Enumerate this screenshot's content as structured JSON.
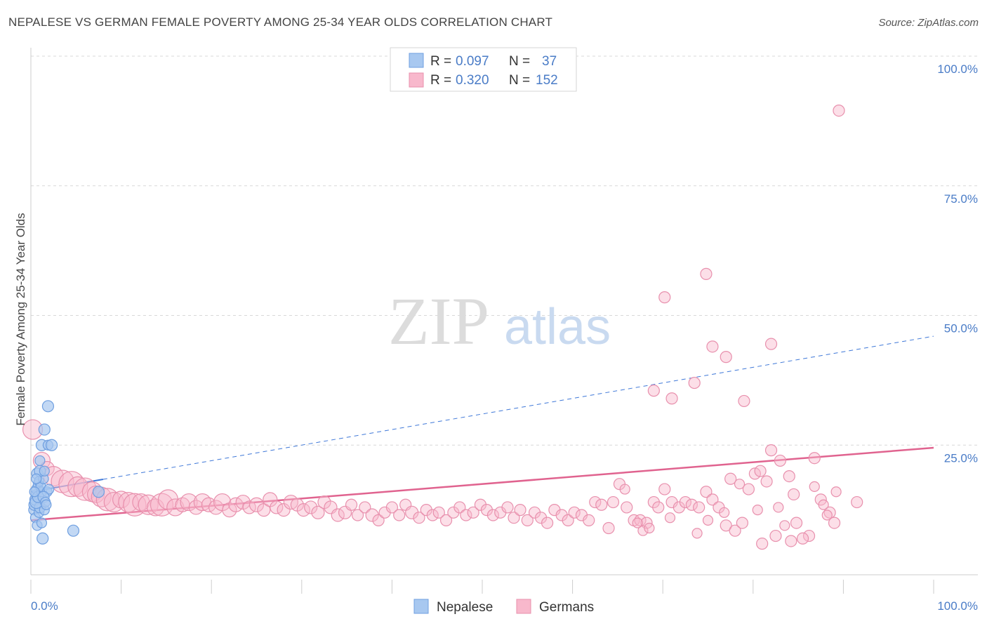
{
  "title": "NEPALESE VS GERMAN FEMALE POVERTY AMONG 25-34 YEAR OLDS CORRELATION CHART",
  "source": "Source: ZipAtlas.com",
  "watermark": {
    "zip": "ZIP",
    "atlas": "atlas"
  },
  "colors": {
    "nepalese_fill": "#a8c8f0",
    "nepalese_stroke": "#6f9fe0",
    "nepalese_line": "#3f78d8",
    "germans_fill": "#f8b8cc",
    "germans_stroke": "#e890ad",
    "germans_line": "#e0638f",
    "label_blue": "#4a7cc7",
    "grid": "#d8d8d8"
  },
  "legend": {
    "r_label": "R =",
    "n_label": "N =",
    "nepalese": {
      "r": "0.097",
      "n": "37"
    },
    "germans": {
      "r": "0.320",
      "n": "152"
    }
  },
  "chart_data": {
    "type": "scatter",
    "xlabel": "",
    "ylabel": "Female Poverty Among 25-34 Year Olds",
    "xlim": [
      0,
      100
    ],
    "ylim": [
      0,
      100
    ],
    "x_tick_labels": {
      "min": "0.0%",
      "max": "100.0%"
    },
    "y_tick_labels": [
      {
        "value": 25,
        "label": "25.0%"
      },
      {
        "value": 50,
        "label": "50.0%"
      },
      {
        "value": 75,
        "label": "75.0%"
      },
      {
        "value": 100,
        "label": "100.0%"
      }
    ],
    "grid": true,
    "legend_placement": "top-center",
    "bottom_legend": [
      "Nepalese",
      "Germans"
    ],
    "series": [
      {
        "name": "Nepalese",
        "trend": {
          "x0": 0,
          "y0": 16.0,
          "x1": 100,
          "y1": 46.0,
          "solid_until": 8
        },
        "points": [
          [
            0.3,
            12.5,
            7
          ],
          [
            0.4,
            13.5,
            8
          ],
          [
            0.5,
            14.5,
            8
          ],
          [
            0.6,
            15.5,
            7
          ],
          [
            0.7,
            16.5,
            8
          ],
          [
            0.8,
            17.5,
            7
          ],
          [
            0.5,
            11.0,
            7
          ],
          [
            0.9,
            12.0,
            7
          ],
          [
            1.0,
            13.0,
            8
          ],
          [
            0.6,
            14.0,
            9
          ],
          [
            0.8,
            15.0,
            8
          ],
          [
            1.2,
            16.0,
            7
          ],
          [
            0.7,
            19.5,
            8
          ],
          [
            0.9,
            18.0,
            7
          ],
          [
            1.1,
            17.0,
            7
          ],
          [
            1.4,
            18.5,
            7
          ],
          [
            0.7,
            9.5,
            7
          ],
          [
            1.2,
            10.0,
            7
          ],
          [
            1.3,
            7.0,
            8
          ],
          [
            1.5,
            12.5,
            7
          ],
          [
            1.0,
            20.0,
            8
          ],
          [
            1.5,
            20.0,
            7
          ],
          [
            1.2,
            25.0,
            8
          ],
          [
            1.5,
            28.0,
            8
          ],
          [
            1.9,
            25.0,
            7
          ],
          [
            2.3,
            25.0,
            8
          ],
          [
            1.9,
            32.5,
            8
          ],
          [
            4.7,
            8.5,
            8
          ],
          [
            1.8,
            16.0,
            7
          ],
          [
            2.0,
            16.5,
            7
          ],
          [
            1.4,
            15.0,
            8
          ],
          [
            1.6,
            14.0,
            7
          ],
          [
            7.5,
            16.0,
            8
          ],
          [
            0.4,
            16.0,
            7
          ],
          [
            0.6,
            18.5,
            7
          ],
          [
            1.0,
            22.0,
            7
          ],
          [
            1.7,
            13.5,
            7
          ]
        ]
      },
      {
        "name": "Germans",
        "trend": {
          "x0": 0,
          "y0": 10.5,
          "x1": 100,
          "y1": 24.5
        },
        "points": [
          [
            0.2,
            28.0,
            14
          ],
          [
            1.2,
            22.0,
            12
          ],
          [
            1.8,
            20.5,
            10
          ],
          [
            2.5,
            19.0,
            14
          ],
          [
            3.5,
            18.0,
            16
          ],
          [
            4.5,
            17.5,
            18
          ],
          [
            5.2,
            17.0,
            14
          ],
          [
            6.0,
            16.5,
            16
          ],
          [
            6.8,
            16.0,
            14
          ],
          [
            7.2,
            15.5,
            12
          ],
          [
            7.8,
            15.0,
            14
          ],
          [
            8.5,
            14.5,
            16
          ],
          [
            9.2,
            14.0,
            14
          ],
          [
            10.0,
            14.5,
            12
          ],
          [
            10.8,
            14.0,
            14
          ],
          [
            11.5,
            13.5,
            16
          ],
          [
            12.2,
            14.0,
            12
          ],
          [
            13.0,
            13.5,
            14
          ],
          [
            13.8,
            13.0,
            12
          ],
          [
            14.5,
            13.5,
            16
          ],
          [
            15.2,
            14.5,
            14
          ],
          [
            16.0,
            13.0,
            12
          ],
          [
            16.8,
            13.5,
            10
          ],
          [
            17.5,
            14.0,
            12
          ],
          [
            18.3,
            13.0,
            10
          ],
          [
            19.0,
            14.0,
            12
          ],
          [
            19.7,
            13.5,
            10
          ],
          [
            20.5,
            13.0,
            10
          ],
          [
            21.2,
            14.0,
            12
          ],
          [
            22.0,
            12.5,
            10
          ],
          [
            22.7,
            13.5,
            10
          ],
          [
            23.5,
            14.0,
            10
          ],
          [
            24.2,
            13.0,
            9
          ],
          [
            25.0,
            13.5,
            10
          ],
          [
            25.8,
            12.5,
            9
          ],
          [
            26.5,
            14.5,
            10
          ],
          [
            27.2,
            13.0,
            9
          ],
          [
            28.0,
            12.5,
            9
          ],
          [
            28.8,
            14.0,
            10
          ],
          [
            29.5,
            13.5,
            9
          ],
          [
            30.2,
            12.5,
            9
          ],
          [
            31.0,
            13.0,
            9
          ],
          [
            31.8,
            12.0,
            9
          ],
          [
            32.5,
            14.0,
            9
          ],
          [
            33.2,
            13.0,
            9
          ],
          [
            34.0,
            11.5,
            9
          ],
          [
            34.8,
            12.0,
            9
          ],
          [
            35.5,
            13.5,
            8
          ],
          [
            36.2,
            11.5,
            8
          ],
          [
            37.0,
            13.0,
            8
          ],
          [
            37.8,
            11.5,
            9
          ],
          [
            38.5,
            10.5,
            8
          ],
          [
            39.2,
            12.0,
            8
          ],
          [
            40.0,
            13.0,
            8
          ],
          [
            40.8,
            11.5,
            8
          ],
          [
            41.5,
            13.5,
            8
          ],
          [
            42.2,
            12.0,
            9
          ],
          [
            43.0,
            11.0,
            8
          ],
          [
            43.8,
            12.5,
            8
          ],
          [
            44.5,
            11.5,
            8
          ],
          [
            45.2,
            12.0,
            8
          ],
          [
            46.0,
            10.5,
            8
          ],
          [
            46.8,
            12.0,
            8
          ],
          [
            47.5,
            13.0,
            8
          ],
          [
            48.2,
            11.5,
            8
          ],
          [
            49.0,
            12.0,
            8
          ],
          [
            49.8,
            13.5,
            8
          ],
          [
            50.5,
            12.5,
            8
          ],
          [
            51.2,
            11.5,
            8
          ],
          [
            52.0,
            12.0,
            8
          ],
          [
            52.8,
            13.0,
            8
          ],
          [
            53.5,
            11.0,
            8
          ],
          [
            54.2,
            12.5,
            8
          ],
          [
            55.0,
            10.5,
            8
          ],
          [
            55.8,
            12.0,
            8
          ],
          [
            56.5,
            11.0,
            8
          ],
          [
            57.2,
            10.0,
            8
          ],
          [
            58.0,
            12.5,
            8
          ],
          [
            58.8,
            11.5,
            8
          ],
          [
            59.5,
            10.5,
            8
          ],
          [
            60.2,
            12.0,
            8
          ],
          [
            61.0,
            11.5,
            8
          ],
          [
            61.8,
            10.5,
            8
          ],
          [
            62.5,
            14.0,
            8
          ],
          [
            63.2,
            13.5,
            8
          ],
          [
            64.0,
            9.0,
            8
          ],
          [
            64.5,
            14.0,
            8
          ],
          [
            65.2,
            17.5,
            8
          ],
          [
            66.0,
            13.0,
            8
          ],
          [
            66.8,
            10.5,
            8
          ],
          [
            67.5,
            10.5,
            8
          ],
          [
            68.2,
            10.0,
            8
          ],
          [
            69.0,
            14.0,
            8
          ],
          [
            69.5,
            13.0,
            8
          ],
          [
            70.2,
            16.5,
            8
          ],
          [
            71.0,
            14.0,
            8
          ],
          [
            71.8,
            13.0,
            8
          ],
          [
            72.5,
            14.0,
            8
          ],
          [
            73.2,
            13.5,
            8
          ],
          [
            74.0,
            13.0,
            8
          ],
          [
            74.8,
            16.0,
            8
          ],
          [
            75.5,
            14.5,
            8
          ],
          [
            76.2,
            13.0,
            8
          ],
          [
            77.0,
            9.5,
            8
          ],
          [
            77.5,
            18.5,
            8
          ],
          [
            78.0,
            8.5,
            8
          ],
          [
            78.8,
            10.0,
            8
          ],
          [
            79.5,
            16.5,
            8
          ],
          [
            80.2,
            19.5,
            8
          ],
          [
            80.8,
            20.0,
            8
          ],
          [
            81.5,
            18.0,
            8
          ],
          [
            82.0,
            24.0,
            8
          ],
          [
            83.0,
            22.0,
            8
          ],
          [
            84.0,
            19.0,
            8
          ],
          [
            84.5,
            15.5,
            8
          ],
          [
            86.8,
            22.5,
            8
          ],
          [
            87.5,
            14.5,
            8
          ],
          [
            88.5,
            12.0,
            8
          ],
          [
            89.0,
            10.0,
            8
          ],
          [
            91.5,
            14.0,
            8
          ],
          [
            65.8,
            16.5,
            7
          ],
          [
            73.8,
            8.0,
            7
          ],
          [
            81.0,
            6.0,
            8
          ],
          [
            82.5,
            7.5,
            8
          ],
          [
            84.2,
            6.5,
            8
          ],
          [
            84.8,
            10.0,
            8
          ],
          [
            86.2,
            7.5,
            8
          ],
          [
            67.8,
            8.5,
            7
          ],
          [
            75.0,
            10.5,
            7
          ],
          [
            70.8,
            11.0,
            7
          ],
          [
            85.5,
            7.0,
            8
          ],
          [
            86.8,
            17.0,
            7
          ],
          [
            76.8,
            12.0,
            7
          ],
          [
            87.8,
            13.5,
            7
          ],
          [
            88.2,
            11.5,
            7
          ],
          [
            89.2,
            16.0,
            7
          ],
          [
            82.8,
            13.0,
            7
          ],
          [
            78.5,
            17.5,
            7
          ],
          [
            80.5,
            12.5,
            7
          ],
          [
            83.5,
            9.5,
            7
          ],
          [
            67.2,
            10.0,
            7
          ],
          [
            68.5,
            9.0,
            7
          ],
          [
            89.5,
            89.5,
            8
          ],
          [
            74.8,
            58.0,
            8
          ],
          [
            70.2,
            53.5,
            8
          ],
          [
            75.5,
            44.0,
            8
          ],
          [
            77.0,
            42.0,
            8
          ],
          [
            82.0,
            44.5,
            8
          ],
          [
            73.5,
            37.0,
            8
          ],
          [
            69.0,
            35.5,
            8
          ],
          [
            71.0,
            34.0,
            8
          ],
          [
            79.0,
            33.5,
            8
          ]
        ]
      }
    ]
  }
}
